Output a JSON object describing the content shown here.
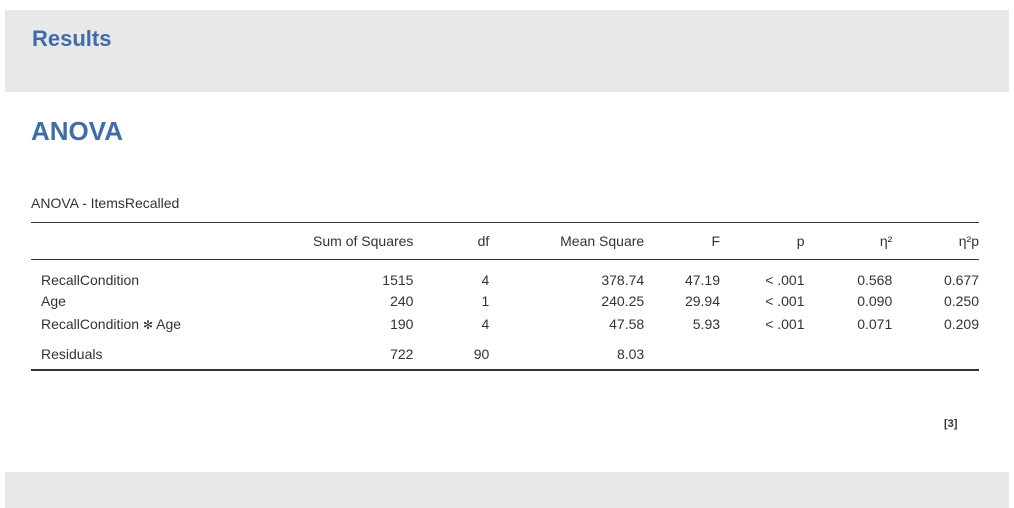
{
  "results": {
    "title": "Results"
  },
  "analysis": {
    "title": "ANOVA",
    "table_caption": "ANOVA - ItemsRecalled",
    "columns": [
      "",
      "Sum of Squares",
      "df",
      "Mean Square",
      "F",
      "p",
      "η²",
      "η²p"
    ],
    "rows": [
      {
        "term_a": "RecallCondition",
        "term_sep": "",
        "term_b": "",
        "ss": "1515",
        "df": "4",
        "ms": "378.74",
        "f": "47.19",
        "p": "< .001",
        "eta2": "0.568",
        "eta2p": "0.677"
      },
      {
        "term_a": "Age",
        "term_sep": "",
        "term_b": "",
        "ss": "240",
        "df": "1",
        "ms": "240.25",
        "f": "29.94",
        "p": "< .001",
        "eta2": "0.090",
        "eta2p": "0.250"
      },
      {
        "term_a": "RecallCondition",
        "term_sep": "✻",
        "term_b": "Age",
        "ss": "190",
        "df": "4",
        "ms": "47.58",
        "f": "5.93",
        "p": "< .001",
        "eta2": "0.071",
        "eta2p": "0.209"
      },
      {
        "term_a": "Residuals",
        "term_sep": "",
        "term_b": "",
        "ss": "722",
        "df": "90",
        "ms": "8.03",
        "f": "",
        "p": "",
        "eta2": "",
        "eta2p": ""
      }
    ],
    "footnote_ref": "[3]"
  },
  "colors": {
    "heading": "#3e6da9",
    "band": "#e8e8e8",
    "text": "#333333"
  }
}
